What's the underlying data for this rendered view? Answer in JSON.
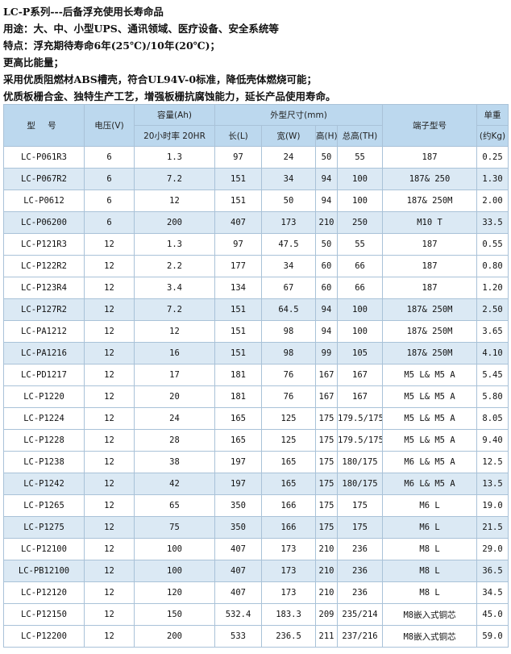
{
  "intro": {
    "lines": [
      "LC-P系列---后备浮充使用长寿命品",
      "用途：大、中、小型UPS、通讯领域、医疗设备、安全系统等",
      "特点：浮充期待寿命6年(25℃)/10年(20℃)；",
      "更高比能量；",
      "采用优质阻燃材ABS槽壳，符合UL94V-0标准，降低壳体燃烧可能；",
      "优质板栅合金、独特生产工艺，增强板栅抗腐蚀能力，延长产品使用寿命。"
    ]
  },
  "table": {
    "headers": {
      "model": "型 号",
      "voltage": "电压(V)",
      "capacity_title": "容量(Ah)",
      "capacity_sub": "20小时率 20HR",
      "dimensions": "外型尺寸(mm)",
      "length": "长(L)",
      "width": "宽(W)",
      "height": "高(H)",
      "total_height": "总高(TH)",
      "terminal": "端子型号",
      "weight_title": "单重",
      "weight_sub": "(约Kg)"
    },
    "rows": [
      {
        "model": "LC-P061R3",
        "voltage": "6",
        "capacity": "1.3",
        "length": "97",
        "width": "24",
        "height": "50",
        "total_height": "55",
        "terminal": "187",
        "weight": "0.25"
      },
      {
        "model": "LC-P067R2",
        "voltage": "6",
        "capacity": "7.2",
        "length": "151",
        "width": "34",
        "height": "94",
        "total_height": "100",
        "terminal": "187& 250",
        "weight": "1.30"
      },
      {
        "model": "LC-P0612",
        "voltage": "6",
        "capacity": "12",
        "length": "151",
        "width": "50",
        "height": "94",
        "total_height": "100",
        "terminal": "187& 250M",
        "weight": "2.00"
      },
      {
        "model": "LC-P06200",
        "voltage": "6",
        "capacity": "200",
        "length": "407",
        "width": "173",
        "height": "210",
        "total_height": "250",
        "terminal": "M10 T",
        "weight": "33.5"
      },
      {
        "model": "LC-P121R3",
        "voltage": "12",
        "capacity": "1.3",
        "length": "97",
        "width": "47.5",
        "height": "50",
        "total_height": "55",
        "terminal": "187",
        "weight": "0.55"
      },
      {
        "model": "LC-P122R2",
        "voltage": "12",
        "capacity": "2.2",
        "length": "177",
        "width": "34",
        "height": "60",
        "total_height": "66",
        "terminal": "187",
        "weight": "0.80"
      },
      {
        "model": "LC-P123R4",
        "voltage": "12",
        "capacity": "3.4",
        "length": "134",
        "width": "67",
        "height": "60",
        "total_height": "66",
        "terminal": "187",
        "weight": "1.20"
      },
      {
        "model": "LC-P127R2",
        "voltage": "12",
        "capacity": "7.2",
        "length": "151",
        "width": "64.5",
        "height": "94",
        "total_height": "100",
        "terminal": "187& 250M",
        "weight": "2.50"
      },
      {
        "model": "LC-PA1212",
        "voltage": "12",
        "capacity": "12",
        "length": "151",
        "width": "98",
        "height": "94",
        "total_height": "100",
        "terminal": "187& 250M",
        "weight": "3.65"
      },
      {
        "model": "LC-PA1216",
        "voltage": "12",
        "capacity": "16",
        "length": "151",
        "width": "98",
        "height": "99",
        "total_height": "105",
        "terminal": "187& 250M",
        "weight": "4.10"
      },
      {
        "model": "LC-PD1217",
        "voltage": "12",
        "capacity": "17",
        "length": "181",
        "width": "76",
        "height": "167",
        "total_height": "167",
        "terminal": "M5 L& M5 A",
        "weight": "5.45"
      },
      {
        "model": "LC-P1220",
        "voltage": "12",
        "capacity": "20",
        "length": "181",
        "width": "76",
        "height": "167",
        "total_height": "167",
        "terminal": "M5 L& M5 A",
        "weight": "5.80"
      },
      {
        "model": "LC-P1224",
        "voltage": "12",
        "capacity": "24",
        "length": "165",
        "width": "125",
        "height": "175",
        "total_height": "179.5/175",
        "terminal": "M5 L& M5 A",
        "weight": "8.05"
      },
      {
        "model": "LC-P1228",
        "voltage": "12",
        "capacity": "28",
        "length": "165",
        "width": "125",
        "height": "175",
        "total_height": "179.5/175",
        "terminal": "M5 L& M5 A",
        "weight": "9.40"
      },
      {
        "model": "LC-P1238",
        "voltage": "12",
        "capacity": "38",
        "length": "197",
        "width": "165",
        "height": "175",
        "total_height": "180/175",
        "terminal": "M6 L& M5 A",
        "weight": "12.5"
      },
      {
        "model": "LC-P1242",
        "voltage": "12",
        "capacity": "42",
        "length": "197",
        "width": "165",
        "height": "175",
        "total_height": "180/175",
        "terminal": "M6 L& M5 A",
        "weight": "13.5"
      },
      {
        "model": "LC-P1265",
        "voltage": "12",
        "capacity": "65",
        "length": "350",
        "width": "166",
        "height": "175",
        "total_height": "175",
        "terminal": "M6 L",
        "weight": "19.0"
      },
      {
        "model": "LC-P1275",
        "voltage": "12",
        "capacity": "75",
        "length": "350",
        "width": "166",
        "height": "175",
        "total_height": "175",
        "terminal": "M6 L",
        "weight": "21.5"
      },
      {
        "model": "LC-P12100",
        "voltage": "12",
        "capacity": "100",
        "length": "407",
        "width": "173",
        "height": "210",
        "total_height": "236",
        "terminal": "M8 L",
        "weight": "29.0"
      },
      {
        "model": "LC-PB12100",
        "voltage": "12",
        "capacity": "100",
        "length": "407",
        "width": "173",
        "height": "210",
        "total_height": "236",
        "terminal": "M8 L",
        "weight": "36.5"
      },
      {
        "model": "LC-P12120",
        "voltage": "12",
        "capacity": "120",
        "length": "407",
        "width": "173",
        "height": "210",
        "total_height": "236",
        "terminal": "M8 L",
        "weight": "34.5"
      },
      {
        "model": "LC-P12150",
        "voltage": "12",
        "capacity": "150",
        "length": "532.4",
        "width": "183.3",
        "height": "209",
        "total_height": "235/214",
        "terminal": "M8嵌入式铜芯",
        "weight": "45.0"
      },
      {
        "model": "LC-P12200",
        "voltage": "12",
        "capacity": "200",
        "length": "533",
        "width": "236.5",
        "height": "211",
        "total_height": "237/216",
        "terminal": "M8嵌入式铜芯",
        "weight": "59.0"
      }
    ],
    "shaded_rows": [
      1,
      3,
      7,
      9,
      15,
      17,
      19
    ],
    "colors": {
      "header": "#bcd8ee",
      "shaded": "#dbe9f4",
      "border": "#a9c2d8"
    }
  }
}
